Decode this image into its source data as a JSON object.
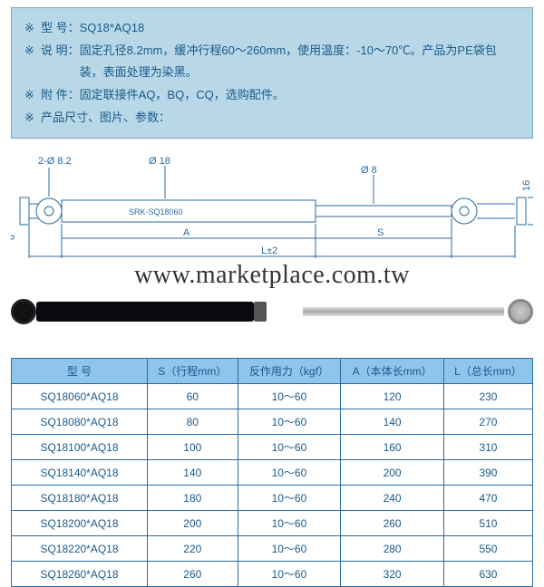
{
  "info": {
    "model_label": "型 号：",
    "model_value": "SQ18*AQ18",
    "desc_label": "说 明：",
    "desc_text": "固定孔径8.2mm，缓冲行程60～260mm，使用温度：-10～70℃。产品为PE袋包装，表面处理为染黑。",
    "attach_label": "附 件：",
    "attach_text": "固定联接件AQ，BQ，CQ，选购配件。",
    "size_label": "产品尺寸、图片、参数："
  },
  "diagram": {
    "dim_2phi": "2-Ø 8.2",
    "dim_phi18": "Ø 18",
    "dim_phi8": "Ø 8",
    "dim_16": "16",
    "dim_8": "8",
    "part_no": "SRK-SQ18060",
    "dim_A": "A",
    "dim_S": "S",
    "dim_L": "L±2"
  },
  "watermark": "www.marketplace.com.tw",
  "table": {
    "headers": {
      "model": "型 号",
      "s": "S（行程mm）",
      "force": "反作用力（kgf）",
      "a": "A（本体长mm）",
      "l": "L（总长mm）"
    },
    "rows": [
      {
        "model": "SQ18060*AQ18",
        "s": "60",
        "force": "10～60",
        "a": "120",
        "l": "230"
      },
      {
        "model": "SQ18080*AQ18",
        "s": "80",
        "force": "10～60",
        "a": "140",
        "l": "270"
      },
      {
        "model": "SQ18100*AQ18",
        "s": "100",
        "force": "10～60",
        "a": "160",
        "l": "310"
      },
      {
        "model": "SQ18140*AQ18",
        "s": "140",
        "force": "10～60",
        "a": "200",
        "l": "390"
      },
      {
        "model": "SQ18180*AQ18",
        "s": "180",
        "force": "10～60",
        "a": "240",
        "l": "470"
      },
      {
        "model": "SQ18200*AQ18",
        "s": "200",
        "force": "10～60",
        "a": "260",
        "l": "510"
      },
      {
        "model": "SQ18220*AQ18",
        "s": "220",
        "force": "10～60",
        "a": "280",
        "l": "550"
      },
      {
        "model": "SQ18260*AQ18",
        "s": "260",
        "force": "10～60",
        "a": "320",
        "l": "630"
      }
    ]
  }
}
